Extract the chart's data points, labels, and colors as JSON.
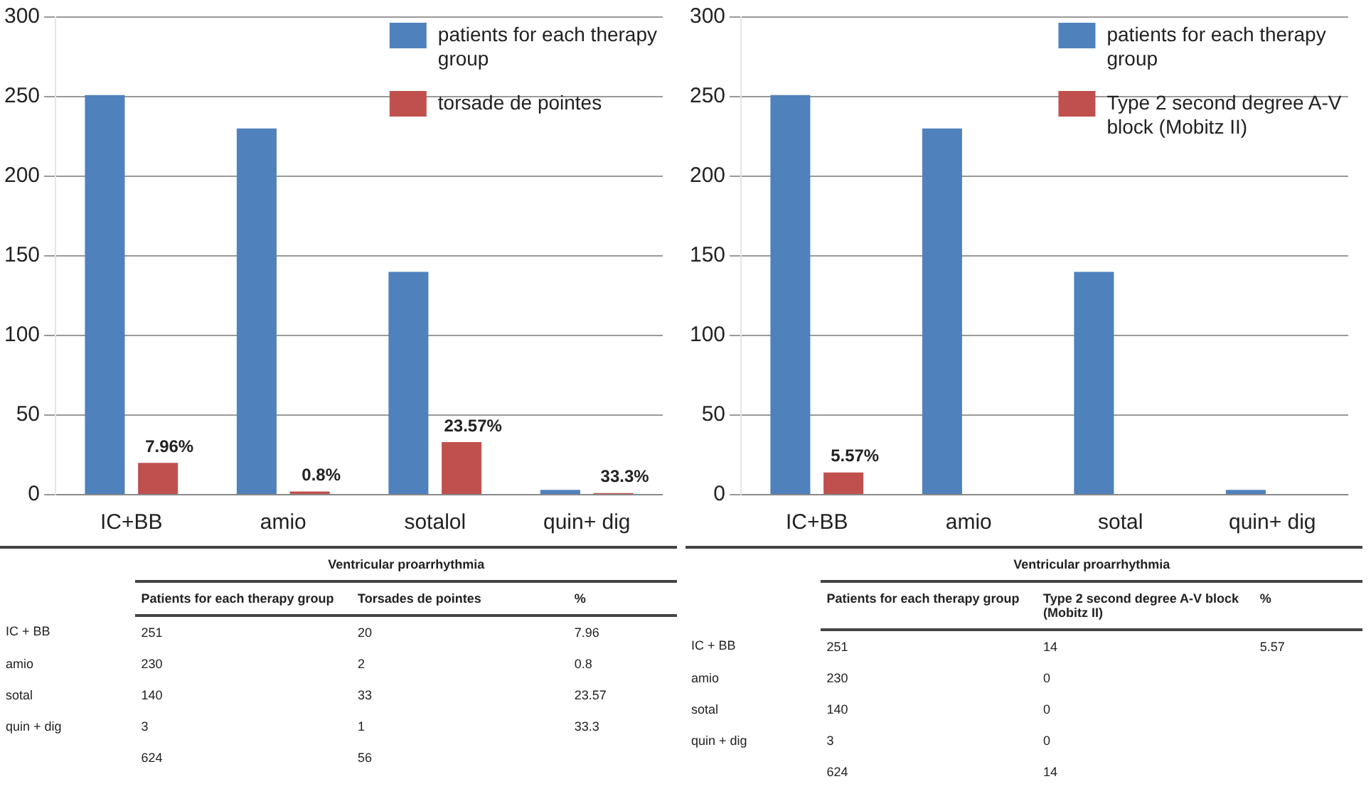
{
  "chart_data": [
    {
      "type": "bar",
      "categories": [
        "IC+BB",
        "amio",
        "sotalol",
        "quin+ dig"
      ],
      "series": [
        {
          "name": "patients for each therapy group",
          "color": "#4f81bd",
          "values": [
            251,
            230,
            140,
            3
          ]
        },
        {
          "name": "torsade de pointes",
          "color": "#c0504d",
          "values": [
            20,
            2,
            33,
            1
          ]
        }
      ],
      "ylim": [
        0,
        300
      ],
      "yticks": [
        0,
        50,
        100,
        150,
        200,
        250,
        300
      ],
      "grid": "y",
      "legend": "top right",
      "annotations": [
        {
          "text": "7.96%",
          "x": "IC+BB",
          "y": 20
        },
        {
          "text": "0.8%",
          "x": "amio",
          "y": 2
        },
        {
          "text": "23.57%",
          "x": "sotalol",
          "y": 33
        },
        {
          "text": "33.3%",
          "x": "quin+ dig",
          "y": 1
        },
        "Ventricular proarrhythmia",
        "Patients for each therapy group",
        "Torsades de pointes",
        "%",
        "IC + BB",
        "251",
        "20",
        "amio",
        "230",
        "2",
        "sotal",
        "140",
        "33",
        "quin + dig",
        "3",
        "1",
        "624",
        "56",
        "7.96",
        "0.8",
        "23.57",
        "33.3"
      ]
    },
    {
      "type": "bar",
      "categories": [
        "IC+BB",
        "amio",
        "sotal",
        "quin+ dig"
      ],
      "series": [
        {
          "name": "patients for each therapy group",
          "color": "#4f81bd",
          "values": [
            251,
            230,
            140,
            3
          ]
        },
        {
          "name": "Type 2 second degree A-V block (Mobitz II)",
          "color": "#c0504d",
          "values": [
            14,
            0,
            0,
            0
          ]
        }
      ],
      "ylim": [
        0,
        300
      ],
      "yticks": [
        0,
        50,
        100,
        150,
        200,
        250,
        300
      ],
      "grid": "y",
      "legend": "top right",
      "annotations": [
        {
          "text": "5.57%",
          "x": "IC+BB",
          "y": 14
        },
        "Ventricular proarrhythmia",
        "Patients for each therapy group",
        "Type 2 second degree A-V block (Mobitz II)",
        "%",
        "IC + BB",
        "251",
        "14",
        "amio",
        "230",
        "0",
        "sotal",
        "140",
        "0",
        "quin + dig",
        "3",
        "0",
        "624",
        "14",
        "5.57"
      ]
    }
  ]
}
